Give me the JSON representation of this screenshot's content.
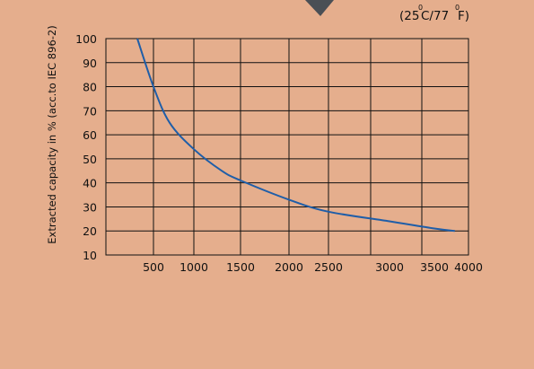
{
  "chart_data": {
    "type": "line",
    "title": "",
    "xlabel": "",
    "ylabel": "Extracted capacity in % (acc.to IEC 896-2)",
    "condition": {
      "open": "(25",
      "deg_c": "0",
      "mid": "C/77",
      "deg_f": "0",
      "close": "F)"
    },
    "x_ticks": [
      500,
      1000,
      1500,
      2000,
      2500,
      3000,
      3500,
      4000
    ],
    "y_ticks": [
      10,
      20,
      30,
      40,
      50,
      60,
      70,
      80,
      90,
      100
    ],
    "ylim": [
      10,
      100
    ],
    "grid": true,
    "series": [
      {
        "color": "#1f5ea8",
        "x": [
          300,
          500,
          700,
          1000,
          1300,
          1500,
          2000,
          2500,
          3000,
          3500,
          3800
        ],
        "y": [
          100,
          80,
          65,
          54,
          45,
          41,
          33,
          28,
          24,
          21,
          20
        ]
      }
    ]
  },
  "colors": {
    "background": "#e5ae8d",
    "grid": "#111111",
    "curve": "#1f5ea8",
    "pointer": "#4a4f55"
  }
}
